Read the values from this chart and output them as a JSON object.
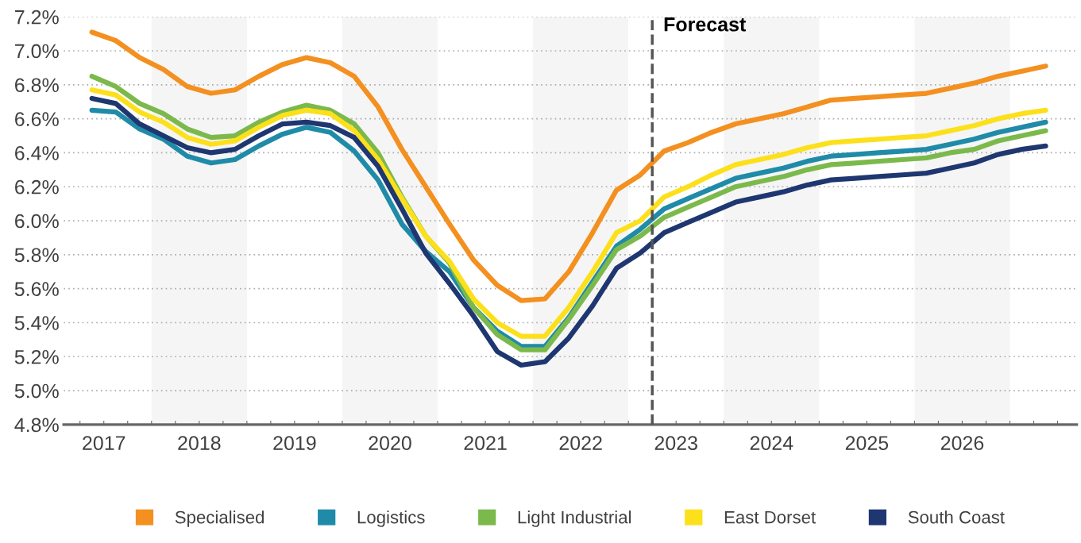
{
  "chart_data": {
    "type": "line",
    "x": [
      2017.375,
      2017.625,
      2017.875,
      2018.125,
      2018.375,
      2018.625,
      2018.875,
      2019.125,
      2019.375,
      2019.625,
      2019.875,
      2020.125,
      2020.375,
      2020.625,
      2020.875,
      2021.125,
      2021.375,
      2021.625,
      2021.875,
      2022.125,
      2022.375,
      2022.625,
      2022.875,
      2023.125,
      2023.375,
      2023.625,
      2023.875,
      2024.125,
      2024.375,
      2024.625,
      2024.875,
      2025.125,
      2025.375,
      2025.625,
      2025.875,
      2026.125,
      2026.375,
      2026.625,
      2026.875,
      2027.125,
      2027.375
    ],
    "series": [
      {
        "name": "Specialised",
        "color": "#f39020",
        "values": [
          7.11,
          7.06,
          6.96,
          6.89,
          6.79,
          6.75,
          6.77,
          6.85,
          6.92,
          6.96,
          6.93,
          6.85,
          6.67,
          6.42,
          6.2,
          5.98,
          5.77,
          5.62,
          5.53,
          5.54,
          5.7,
          5.93,
          6.18,
          6.27,
          6.41,
          6.46,
          6.52,
          6.57,
          6.6,
          6.63,
          6.67,
          6.71,
          6.72,
          6.73,
          6.74,
          6.75,
          6.78,
          6.81,
          6.85,
          6.88,
          6.91
        ]
      },
      {
        "name": "Logistics",
        "color": "#1f8ba8",
        "values": [
          6.65,
          6.64,
          6.54,
          6.48,
          6.38,
          6.34,
          6.36,
          6.44,
          6.51,
          6.55,
          6.52,
          6.41,
          6.24,
          5.98,
          5.82,
          5.7,
          5.49,
          5.35,
          5.26,
          5.26,
          5.43,
          5.64,
          5.85,
          5.95,
          6.07,
          6.13,
          6.19,
          6.25,
          6.28,
          6.31,
          6.35,
          6.38,
          6.39,
          6.4,
          6.41,
          6.42,
          6.45,
          6.48,
          6.52,
          6.55,
          6.58
        ]
      },
      {
        "name": "Light Industrial",
        "color": "#7cb94c",
        "values": [
          6.85,
          6.79,
          6.69,
          6.63,
          6.54,
          6.49,
          6.5,
          6.58,
          6.64,
          6.68,
          6.65,
          6.57,
          6.4,
          6.14,
          5.91,
          5.75,
          5.49,
          5.33,
          5.24,
          5.24,
          5.42,
          5.62,
          5.83,
          5.91,
          6.02,
          6.08,
          6.14,
          6.2,
          6.23,
          6.26,
          6.3,
          6.33,
          6.34,
          6.35,
          6.36,
          6.37,
          6.4,
          6.42,
          6.47,
          6.5,
          6.53
        ]
      },
      {
        "name": "East Dorset",
        "color": "#fce01c",
        "values": [
          6.77,
          6.74,
          6.64,
          6.58,
          6.49,
          6.45,
          6.47,
          6.55,
          6.62,
          6.65,
          6.63,
          6.53,
          6.36,
          6.13,
          5.91,
          5.76,
          5.54,
          5.4,
          5.32,
          5.32,
          5.49,
          5.7,
          5.93,
          6.0,
          6.14,
          6.2,
          6.27,
          6.33,
          6.36,
          6.39,
          6.43,
          6.46,
          6.47,
          6.48,
          6.49,
          6.5,
          6.53,
          6.56,
          6.6,
          6.63,
          6.65
        ]
      },
      {
        "name": "South Coast",
        "color": "#1f3770",
        "values": [
          6.72,
          6.69,
          6.57,
          6.5,
          6.43,
          6.4,
          6.42,
          6.5,
          6.57,
          6.58,
          6.56,
          6.49,
          6.32,
          6.07,
          5.81,
          5.63,
          5.44,
          5.23,
          5.15,
          5.17,
          5.31,
          5.5,
          5.72,
          5.81,
          5.93,
          5.99,
          6.05,
          6.11,
          6.14,
          6.17,
          6.21,
          6.24,
          6.25,
          6.26,
          6.27,
          6.28,
          6.31,
          6.34,
          6.39,
          6.42,
          6.44
        ]
      }
    ],
    "xlim": [
      2017.08,
      2027.7
    ],
    "xticks": [
      {
        "value": 2017.25,
        "label": null
      },
      {
        "value": 2017.5,
        "label": "2017"
      },
      {
        "value": 2017.75,
        "label": null
      },
      {
        "value": 2018,
        "label": null
      },
      {
        "value": 2018.25,
        "label": null
      },
      {
        "value": 2018.5,
        "label": "2018"
      },
      {
        "value": 2018.75,
        "label": null
      },
      {
        "value": 2019,
        "label": null
      },
      {
        "value": 2019.25,
        "label": null
      },
      {
        "value": 2019.5,
        "label": "2019"
      },
      {
        "value": 2019.75,
        "label": null
      },
      {
        "value": 2020,
        "label": null
      },
      {
        "value": 2020.25,
        "label": null
      },
      {
        "value": 2020.5,
        "label": "2020"
      },
      {
        "value": 2020.75,
        "label": null
      },
      {
        "value": 2021,
        "label": null
      },
      {
        "value": 2021.25,
        "label": null
      },
      {
        "value": 2021.5,
        "label": "2021"
      },
      {
        "value": 2021.75,
        "label": null
      },
      {
        "value": 2022,
        "label": null
      },
      {
        "value": 2022.25,
        "label": null
      },
      {
        "value": 2022.5,
        "label": "2022"
      },
      {
        "value": 2022.75,
        "label": null
      },
      {
        "value": 2023,
        "label": null
      },
      {
        "value": 2023.25,
        "label": null
      },
      {
        "value": 2023.5,
        "label": "2023"
      },
      {
        "value": 2023.75,
        "label": null
      },
      {
        "value": 2024,
        "label": null
      },
      {
        "value": 2024.25,
        "label": null
      },
      {
        "value": 2024.5,
        "label": "2024"
      },
      {
        "value": 2024.75,
        "label": null
      },
      {
        "value": 2025,
        "label": null
      },
      {
        "value": 2025.25,
        "label": null
      },
      {
        "value": 2025.5,
        "label": "2025"
      },
      {
        "value": 2025.75,
        "label": null
      },
      {
        "value": 2026,
        "label": null
      },
      {
        "value": 2026.25,
        "label": null
      },
      {
        "value": 2026.5,
        "label": "2026"
      },
      {
        "value": 2026.75,
        "label": null
      },
      {
        "value": 2027,
        "label": null
      },
      {
        "value": 2027.25,
        "label": null
      },
      {
        "value": 2027.5,
        "label": null
      }
    ],
    "ylim": [
      4.8,
      7.2
    ],
    "yticks": [
      {
        "value": 4.8,
        "label": "4.8%"
      },
      {
        "value": 5.0,
        "label": "5.0%"
      },
      {
        "value": 5.2,
        "label": "5.2%"
      },
      {
        "value": 5.4,
        "label": "5.4%"
      },
      {
        "value": 5.6,
        "label": "5.6%"
      },
      {
        "value": 5.8,
        "label": "5.8%"
      },
      {
        "value": 6.0,
        "label": "6.0%"
      },
      {
        "value": 6.2,
        "label": "6.2%"
      },
      {
        "value": 6.4,
        "label": "6.4%"
      },
      {
        "value": 6.6,
        "label": "6.6%"
      },
      {
        "value": 6.8,
        "label": "6.8%"
      },
      {
        "value": 7.0,
        "label": "7.0%"
      },
      {
        "value": 7.2,
        "label": "7.2%"
      }
    ],
    "bands": [
      {
        "axis": "x",
        "from": 2018,
        "to": 2019,
        "label": null,
        "color": "#f5f5f5"
      },
      {
        "axis": "x",
        "from": 2020,
        "to": 2021,
        "label": null,
        "color": "#f5f5f5"
      },
      {
        "axis": "x",
        "from": 2022,
        "to": 2023,
        "label": null,
        "color": "#f5f5f5"
      },
      {
        "axis": "x",
        "from": 2024,
        "to": 2025,
        "label": null,
        "color": "#f5f5f5"
      },
      {
        "axis": "x",
        "from": 2026,
        "to": 2027,
        "label": null,
        "color": "#f5f5f5"
      }
    ],
    "ref_lines": [
      {
        "axis": "x",
        "value": 2023.25,
        "label": "Forecast",
        "color": "#555555",
        "line_style": "dashed"
      }
    ],
    "grid": "y",
    "legend": "bottom",
    "marker": "none",
    "line_style": "solid"
  }
}
